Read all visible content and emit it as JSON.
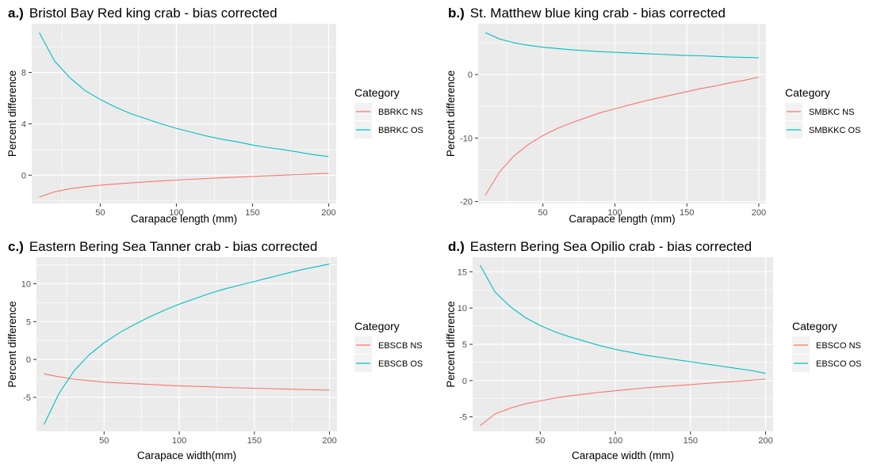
{
  "chart_data": [
    {
      "type": "line",
      "panel": "a.)",
      "title": "Bristol Bay Red king crab - bias corrected",
      "xlabel": "Carapace length (mm)",
      "ylabel": "Percent difference",
      "xlim": [
        5,
        205
      ],
      "ylim": [
        -2.2,
        11.8
      ],
      "xticks": [
        50,
        100,
        150,
        200
      ],
      "yticks": [
        0,
        4,
        8
      ],
      "legend_title": "Category",
      "legend_position": "right",
      "grid": true,
      "series": [
        {
          "name": "BBRKC NS",
          "color": "#F8766D",
          "x": [
            10,
            20,
            30,
            40,
            50,
            60,
            70,
            80,
            90,
            100,
            110,
            120,
            130,
            140,
            150,
            160,
            170,
            180,
            190,
            200
          ],
          "y": [
            -1.7,
            -1.3,
            -1.05,
            -0.9,
            -0.78,
            -0.68,
            -0.6,
            -0.52,
            -0.45,
            -0.38,
            -0.32,
            -0.26,
            -0.2,
            -0.15,
            -0.1,
            -0.05,
            0.0,
            0.05,
            0.1,
            0.15
          ]
        },
        {
          "name": "BBRKC OS",
          "color": "#00BFC4",
          "x": [
            10,
            20,
            30,
            40,
            50,
            60,
            70,
            80,
            90,
            100,
            110,
            120,
            130,
            140,
            150,
            160,
            170,
            180,
            190,
            200
          ],
          "y": [
            11.1,
            8.9,
            7.6,
            6.6,
            5.9,
            5.3,
            4.8,
            4.4,
            4.0,
            3.65,
            3.35,
            3.05,
            2.8,
            2.6,
            2.35,
            2.15,
            2.0,
            1.8,
            1.6,
            1.45
          ]
        }
      ]
    },
    {
      "type": "line",
      "panel": "b.)",
      "title": "St. Matthew blue king crab - bias corrected",
      "xlabel": "Carapace length (mm)",
      "ylabel": "Percent difference",
      "xlim": [
        5,
        205
      ],
      "ylim": [
        -20.3,
        8.0
      ],
      "xticks": [
        50,
        100,
        150,
        200
      ],
      "yticks": [
        -20,
        -10,
        0
      ],
      "legend_title": "Category",
      "legend_position": "right",
      "grid": true,
      "series": [
        {
          "name": "SMBKC NS",
          "color": "#F8766D",
          "x": [
            10,
            20,
            30,
            40,
            50,
            60,
            70,
            80,
            90,
            100,
            110,
            120,
            130,
            140,
            150,
            160,
            170,
            180,
            190,
            200
          ],
          "y": [
            -19.0,
            -15.3,
            -12.8,
            -11.0,
            -9.6,
            -8.5,
            -7.6,
            -6.8,
            -6.0,
            -5.4,
            -4.8,
            -4.2,
            -3.7,
            -3.2,
            -2.7,
            -2.2,
            -1.8,
            -1.3,
            -0.9,
            -0.4
          ]
        },
        {
          "name": "SMBKKC OS",
          "color": "#00BFC4",
          "x": [
            10,
            20,
            30,
            40,
            50,
            60,
            70,
            80,
            90,
            100,
            110,
            120,
            130,
            140,
            150,
            160,
            170,
            180,
            190,
            200
          ],
          "y": [
            6.6,
            5.6,
            5.0,
            4.6,
            4.3,
            4.1,
            3.9,
            3.75,
            3.6,
            3.5,
            3.4,
            3.3,
            3.2,
            3.1,
            3.0,
            2.95,
            2.85,
            2.75,
            2.7,
            2.65
          ]
        }
      ]
    },
    {
      "type": "line",
      "panel": "c.)",
      "title": "Eastern Bering Sea Tanner crab - bias corrected",
      "xlabel": "Carapace width(mm)",
      "ylabel": "Percent difference",
      "xlim": [
        5,
        205
      ],
      "ylim": [
        -9.5,
        13.5
      ],
      "xticks": [
        50,
        100,
        150,
        200
      ],
      "yticks": [
        -5,
        0,
        5,
        10
      ],
      "legend_title": "Category",
      "legend_position": "right",
      "grid": true,
      "series": [
        {
          "name": "EBSCB NS",
          "color": "#F8766D",
          "x": [
            10,
            20,
            30,
            40,
            50,
            60,
            70,
            80,
            90,
            100,
            110,
            120,
            130,
            140,
            150,
            160,
            170,
            180,
            190,
            200
          ],
          "y": [
            -1.9,
            -2.3,
            -2.6,
            -2.8,
            -3.0,
            -3.1,
            -3.2,
            -3.3,
            -3.4,
            -3.5,
            -3.55,
            -3.6,
            -3.7,
            -3.75,
            -3.8,
            -3.85,
            -3.9,
            -3.95,
            -4.0,
            -4.05
          ]
        },
        {
          "name": "EBSCB OS",
          "color": "#00BFC4",
          "x": [
            10,
            20,
            30,
            40,
            50,
            60,
            70,
            80,
            90,
            100,
            110,
            120,
            130,
            140,
            150,
            160,
            170,
            180,
            190,
            200
          ],
          "y": [
            -8.6,
            -4.5,
            -1.5,
            0.6,
            2.2,
            3.5,
            4.6,
            5.6,
            6.5,
            7.3,
            8.0,
            8.7,
            9.3,
            9.8,
            10.3,
            10.8,
            11.3,
            11.8,
            12.2,
            12.6
          ]
        }
      ]
    },
    {
      "type": "line",
      "panel": "d.)",
      "title": "Eastern Bering Sea Opilio crab - bias corrected",
      "xlabel": "Carapace width (mm)",
      "ylabel": "Percent difference",
      "xlim": [
        5,
        205
      ],
      "ylim": [
        -7.0,
        17.0
      ],
      "xticks": [
        50,
        100,
        150,
        200
      ],
      "yticks": [
        -5,
        0,
        5,
        10,
        15
      ],
      "legend_title": "Category",
      "legend_position": "right",
      "grid": true,
      "series": [
        {
          "name": "EBSCO NS",
          "color": "#F8766D",
          "x": [
            10,
            20,
            30,
            40,
            50,
            60,
            70,
            80,
            90,
            100,
            110,
            120,
            130,
            140,
            150,
            160,
            170,
            180,
            190,
            200
          ],
          "y": [
            -6.2,
            -4.6,
            -3.8,
            -3.2,
            -2.8,
            -2.4,
            -2.1,
            -1.85,
            -1.6,
            -1.4,
            -1.2,
            -1.0,
            -0.85,
            -0.7,
            -0.55,
            -0.4,
            -0.25,
            -0.1,
            0.05,
            0.2
          ]
        },
        {
          "name": "EBSCO OS",
          "color": "#00BFC4",
          "x": [
            10,
            20,
            30,
            40,
            50,
            60,
            70,
            80,
            90,
            100,
            110,
            120,
            130,
            140,
            150,
            160,
            170,
            180,
            190,
            200
          ],
          "y": [
            15.9,
            12.2,
            10.2,
            8.7,
            7.6,
            6.7,
            6.0,
            5.4,
            4.8,
            4.3,
            3.9,
            3.5,
            3.2,
            2.9,
            2.6,
            2.3,
            2.0,
            1.7,
            1.4,
            1.0
          ]
        }
      ]
    }
  ]
}
